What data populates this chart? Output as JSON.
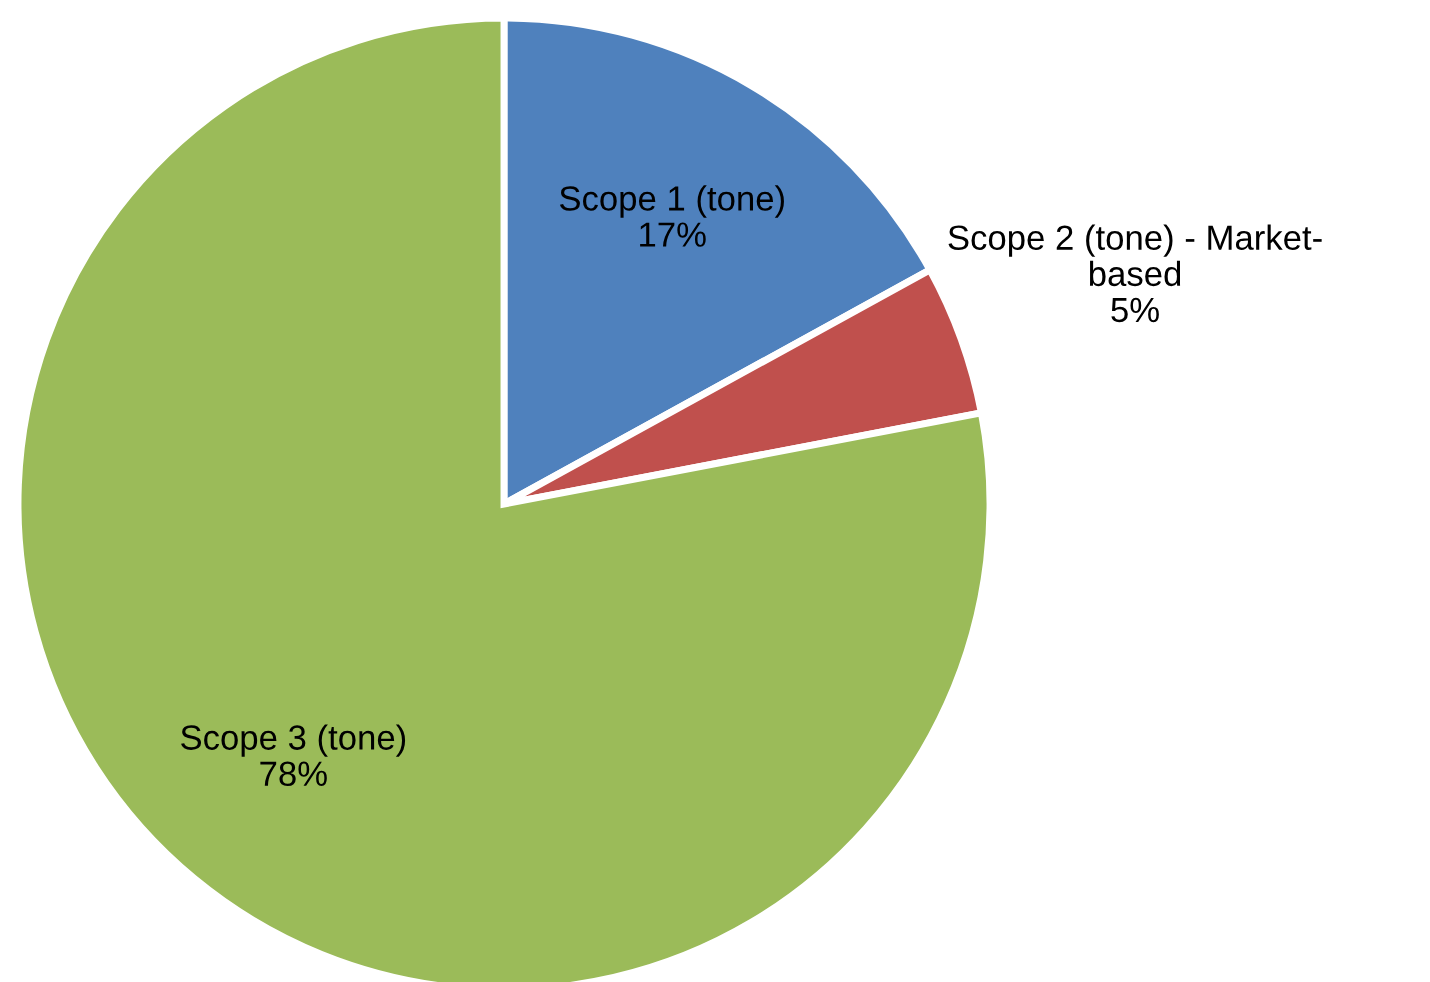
{
  "chart_data": {
    "type": "pie",
    "categories": [
      "Scope 1 (tone)",
      "Scope 2 (tone) - Market-\nbased",
      "Scope 3 (tone)"
    ],
    "values": [
      17,
      5,
      78
    ],
    "colors": [
      "#4f81bd",
      "#c0504d",
      "#9bbb59"
    ],
    "value_labels": [
      "17%",
      "5%",
      "78%"
    ],
    "legend": false
  }
}
